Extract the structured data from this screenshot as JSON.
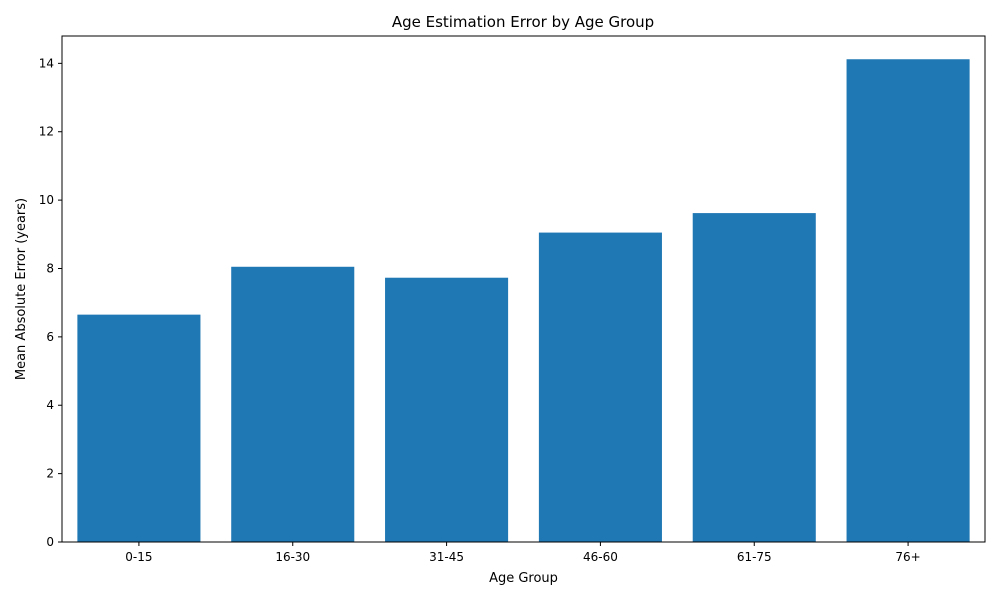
{
  "chart_data": {
    "type": "bar",
    "title": "Age Estimation Error by Age Group",
    "xlabel": "Age Group",
    "ylabel": "Mean Absolute Error (years)",
    "categories": [
      "0-15",
      "16-30",
      "31-45",
      "46-60",
      "61-75",
      "76+"
    ],
    "values": [
      6.65,
      8.05,
      7.73,
      9.05,
      9.62,
      14.12
    ],
    "ylim": [
      0,
      14.8
    ],
    "yticks": [
      0,
      2,
      4,
      6,
      8,
      10,
      12,
      14
    ],
    "grid": false,
    "legend": "none",
    "bar_color": "#1f77b4"
  }
}
